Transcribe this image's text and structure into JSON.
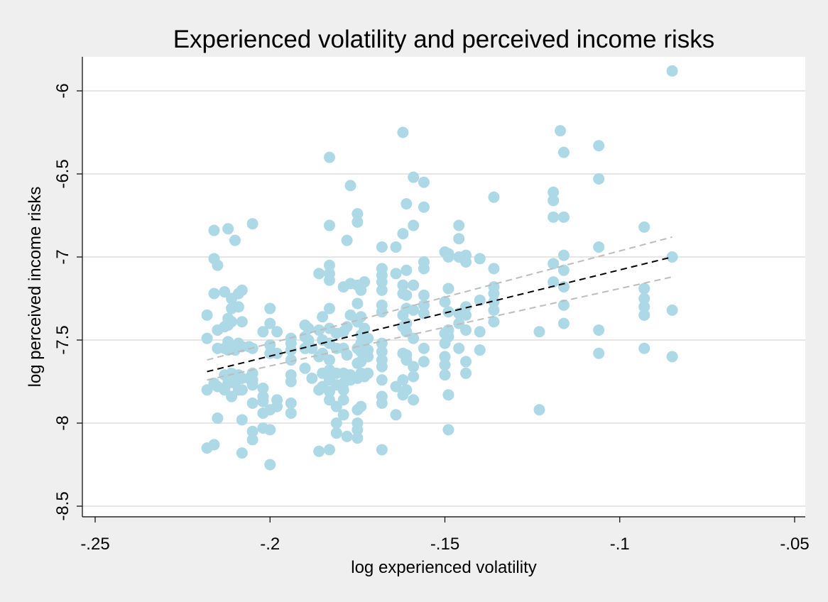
{
  "chart_data": {
    "type": "scatter",
    "title": "Experienced volatility and perceived income risks",
    "xlabel": "log experienced volatility",
    "ylabel": "log perceived income risks",
    "xlim": [
      -0.25,
      -0.05
    ],
    "ylim": [
      -8.5,
      -6.0
    ],
    "xticks": [
      -0.25,
      -0.2,
      -0.15,
      -0.1,
      -0.05
    ],
    "xtick_labels": [
      "-.25",
      "-.2",
      "-.15",
      "-.1",
      "-.05"
    ],
    "yticks": [
      -8.5,
      -8.0,
      -7.5,
      -7.0,
      -6.5,
      -6.0
    ],
    "ytick_labels": [
      "-8.5",
      "-8",
      "-7.5",
      "-7",
      "-6.5",
      "-6"
    ],
    "grid": "horizontal",
    "legend": "none",
    "colors": {
      "points": "#add8e6",
      "fit_line": "#000000",
      "ci_lines": "#bdbdbd",
      "plot_background": "#ffffff",
      "page_background": "#efefef",
      "gridlines": "#e6e6e6"
    },
    "fit_line": {
      "x": [
        -0.218,
        -0.085
      ],
      "y": [
        -7.69,
        -7.0
      ]
    },
    "ci_upper": {
      "x": [
        -0.218,
        -0.085
      ],
      "y": [
        -7.62,
        -6.88
      ]
    },
    "ci_lower": {
      "x": [
        -0.218,
        -0.085
      ],
      "y": [
        -7.74,
        -7.12
      ]
    },
    "points": [
      [
        -0.085,
        -5.88
      ],
      [
        -0.085,
        -7.0
      ],
      [
        -0.085,
        -7.32
      ],
      [
        -0.085,
        -7.6
      ],
      [
        -0.093,
        -6.82
      ],
      [
        -0.093,
        -7.19
      ],
      [
        -0.093,
        -7.25
      ],
      [
        -0.093,
        -7.3
      ],
      [
        -0.093,
        -7.35
      ],
      [
        -0.093,
        -7.55
      ],
      [
        -0.106,
        -6.33
      ],
      [
        -0.106,
        -6.53
      ],
      [
        -0.106,
        -6.94
      ],
      [
        -0.106,
        -7.44
      ],
      [
        -0.106,
        -7.58
      ],
      [
        -0.117,
        -6.24
      ],
      [
        -0.116,
        -6.37
      ],
      [
        -0.116,
        -6.76
      ],
      [
        -0.116,
        -6.99
      ],
      [
        -0.116,
        -7.08
      ],
      [
        -0.116,
        -7.18
      ],
      [
        -0.116,
        -7.29
      ],
      [
        -0.116,
        -7.4
      ],
      [
        -0.119,
        -6.61
      ],
      [
        -0.119,
        -6.66
      ],
      [
        -0.119,
        -6.76
      ],
      [
        -0.119,
        -7.04
      ],
      [
        -0.119,
        -7.15
      ],
      [
        -0.123,
        -7.45
      ],
      [
        -0.123,
        -7.92
      ],
      [
        -0.136,
        -6.64
      ],
      [
        -0.136,
        -7.07
      ],
      [
        -0.136,
        -7.18
      ],
      [
        -0.136,
        -7.22
      ],
      [
        -0.136,
        -7.27
      ],
      [
        -0.136,
        -7.32
      ],
      [
        -0.136,
        -7.39
      ],
      [
        -0.14,
        -7.01
      ],
      [
        -0.14,
        -7.26
      ],
      [
        -0.14,
        -7.45
      ],
      [
        -0.14,
        -7.56
      ],
      [
        -0.144,
        -6.99
      ],
      [
        -0.144,
        -7.03
      ],
      [
        -0.144,
        -7.3
      ],
      [
        -0.144,
        -7.35
      ],
      [
        -0.144,
        -7.44
      ],
      [
        -0.144,
        -7.63
      ],
      [
        -0.144,
        -7.7
      ],
      [
        -0.146,
        -6.81
      ],
      [
        -0.146,
        -6.89
      ],
      [
        -0.146,
        -7.0
      ],
      [
        -0.146,
        -7.34
      ],
      [
        -0.146,
        -7.4
      ],
      [
        -0.146,
        -7.55
      ],
      [
        -0.149,
        -6.98
      ],
      [
        -0.149,
        -7.0
      ],
      [
        -0.149,
        -7.19
      ],
      [
        -0.149,
        -7.33
      ],
      [
        -0.149,
        -7.44
      ],
      [
        -0.149,
        -7.48
      ],
      [
        -0.15,
        -6.97
      ],
      [
        -0.15,
        -7.27
      ],
      [
        -0.15,
        -7.46
      ],
      [
        -0.15,
        -7.52
      ],
      [
        -0.15,
        -7.6
      ],
      [
        -0.15,
        -7.65
      ],
      [
        -0.15,
        -7.71
      ],
      [
        -0.149,
        -7.83
      ],
      [
        -0.149,
        -8.04
      ],
      [
        -0.156,
        -6.55
      ],
      [
        -0.156,
        -6.7
      ],
      [
        -0.156,
        -7.03
      ],
      [
        -0.156,
        -7.07
      ],
      [
        -0.156,
        -7.23
      ],
      [
        -0.156,
        -7.29
      ],
      [
        -0.156,
        -7.34
      ],
      [
        -0.156,
        -7.55
      ],
      [
        -0.156,
        -7.63
      ],
      [
        -0.159,
        -6.52
      ],
      [
        -0.159,
        -6.81
      ],
      [
        -0.159,
        -7.17
      ],
      [
        -0.159,
        -7.32
      ],
      [
        -0.159,
        -7.49
      ],
      [
        -0.159,
        -7.66
      ],
      [
        -0.159,
        -7.72
      ],
      [
        -0.159,
        -7.86
      ],
      [
        -0.161,
        -6.68
      ],
      [
        -0.161,
        -7.08
      ],
      [
        -0.161,
        -7.23
      ],
      [
        -0.161,
        -7.31
      ],
      [
        -0.161,
        -7.4
      ],
      [
        -0.161,
        -7.45
      ],
      [
        -0.161,
        -7.59
      ],
      [
        -0.161,
        -7.62
      ],
      [
        -0.161,
        -7.8
      ],
      [
        -0.162,
        -6.25
      ],
      [
        -0.162,
        -6.86
      ],
      [
        -0.162,
        -7.17
      ],
      [
        -0.162,
        -7.22
      ],
      [
        -0.162,
        -7.35
      ],
      [
        -0.162,
        -7.42
      ],
      [
        -0.162,
        -7.58
      ],
      [
        -0.162,
        -7.74
      ],
      [
        -0.162,
        -7.83
      ],
      [
        -0.164,
        -6.94
      ],
      [
        -0.164,
        -7.1
      ],
      [
        -0.164,
        -7.78
      ],
      [
        -0.164,
        -7.95
      ],
      [
        -0.168,
        -6.94
      ],
      [
        -0.168,
        -7.07
      ],
      [
        -0.168,
        -7.11
      ],
      [
        -0.168,
        -7.15
      ],
      [
        -0.168,
        -7.2
      ],
      [
        -0.168,
        -7.29
      ],
      [
        -0.168,
        -7.33
      ],
      [
        -0.168,
        -7.52
      ],
      [
        -0.168,
        -7.57
      ],
      [
        -0.168,
        -7.62
      ],
      [
        -0.168,
        -7.66
      ],
      [
        -0.168,
        -7.74
      ],
      [
        -0.168,
        -7.84
      ],
      [
        -0.168,
        -7.88
      ],
      [
        -0.168,
        -8.16
      ],
      [
        -0.172,
        -7.49
      ],
      [
        -0.172,
        -7.56
      ],
      [
        -0.172,
        -7.6
      ],
      [
        -0.172,
        -7.7
      ],
      [
        -0.173,
        -7.15
      ],
      [
        -0.173,
        -7.43
      ],
      [
        -0.173,
        -7.54
      ],
      [
        -0.173,
        -7.58
      ],
      [
        -0.173,
        -7.72
      ],
      [
        -0.174,
        -7.2
      ],
      [
        -0.174,
        -7.36
      ],
      [
        -0.174,
        -7.47
      ],
      [
        -0.174,
        -7.52
      ],
      [
        -0.174,
        -7.57
      ],
      [
        -0.174,
        -7.63
      ],
      [
        -0.174,
        -7.7
      ],
      [
        -0.174,
        -7.9
      ],
      [
        -0.175,
        -6.74
      ],
      [
        -0.175,
        -6.79
      ],
      [
        -0.175,
        -7.17
      ],
      [
        -0.175,
        -7.28
      ],
      [
        -0.175,
        -7.39
      ],
      [
        -0.175,
        -7.55
      ],
      [
        -0.175,
        -7.64
      ],
      [
        -0.175,
        -7.73
      ],
      [
        -0.175,
        -7.92
      ],
      [
        -0.175,
        -8.0
      ],
      [
        -0.175,
        -8.04
      ],
      [
        -0.175,
        -8.09
      ],
      [
        -0.177,
        -6.57
      ],
      [
        -0.177,
        -7.16
      ],
      [
        -0.177,
        -7.35
      ],
      [
        -0.177,
        -7.71
      ],
      [
        -0.177,
        -7.74
      ],
      [
        -0.178,
        -6.9
      ],
      [
        -0.178,
        -7.42
      ],
      [
        -0.178,
        -7.59
      ],
      [
        -0.178,
        -7.71
      ],
      [
        -0.178,
        -8.08
      ],
      [
        -0.179,
        -7.18
      ],
      [
        -0.179,
        -7.45
      ],
      [
        -0.179,
        -7.55
      ],
      [
        -0.179,
        -7.7
      ],
      [
        -0.179,
        -7.76
      ],
      [
        -0.179,
        -7.8
      ],
      [
        -0.179,
        -7.86
      ],
      [
        -0.179,
        -7.95
      ],
      [
        -0.181,
        -7.46
      ],
      [
        -0.181,
        -7.55
      ],
      [
        -0.181,
        -7.7
      ],
      [
        -0.181,
        -7.77
      ],
      [
        -0.181,
        -7.9
      ],
      [
        -0.181,
        -8.0
      ],
      [
        -0.181,
        -8.06
      ],
      [
        -0.183,
        -6.4
      ],
      [
        -0.183,
        -6.81
      ],
      [
        -0.183,
        -7.05
      ],
      [
        -0.183,
        -7.1
      ],
      [
        -0.183,
        -7.14
      ],
      [
        -0.183,
        -7.31
      ],
      [
        -0.183,
        -7.43
      ],
      [
        -0.183,
        -7.52
      ],
      [
        -0.183,
        -7.62
      ],
      [
        -0.183,
        -7.68
      ],
      [
        -0.183,
        -7.74
      ],
      [
        -0.183,
        -7.81
      ],
      [
        -0.183,
        -7.86
      ],
      [
        -0.183,
        -8.16
      ],
      [
        -0.185,
        -7.36
      ],
      [
        -0.185,
        -7.5
      ],
      [
        -0.185,
        -7.58
      ],
      [
        -0.185,
        -7.7
      ],
      [
        -0.185,
        -7.78
      ],
      [
        -0.186,
        -7.1
      ],
      [
        -0.186,
        -7.44
      ],
      [
        -0.186,
        -7.6
      ],
      [
        -0.186,
        -7.8
      ],
      [
        -0.186,
        -8.17
      ],
      [
        -0.188,
        -7.55
      ],
      [
        -0.188,
        -7.73
      ],
      [
        -0.189,
        -7.43
      ],
      [
        -0.189,
        -7.5
      ],
      [
        -0.189,
        -7.52
      ],
      [
        -0.19,
        -7.41
      ],
      [
        -0.19,
        -7.48
      ],
      [
        -0.19,
        -7.55
      ],
      [
        -0.19,
        -7.67
      ],
      [
        -0.194,
        -7.49
      ],
      [
        -0.194,
        -7.52
      ],
      [
        -0.194,
        -7.56
      ],
      [
        -0.194,
        -7.62
      ],
      [
        -0.194,
        -7.71
      ],
      [
        -0.194,
        -7.75
      ],
      [
        -0.194,
        -7.88
      ],
      [
        -0.194,
        -7.94
      ],
      [
        -0.198,
        -7.45
      ],
      [
        -0.198,
        -7.58
      ],
      [
        -0.198,
        -7.86
      ],
      [
        -0.198,
        -7.9
      ],
      [
        -0.2,
        -7.31
      ],
      [
        -0.2,
        -7.4
      ],
      [
        -0.2,
        -7.53
      ],
      [
        -0.2,
        -7.58
      ],
      [
        -0.2,
        -7.92
      ],
      [
        -0.2,
        -8.04
      ],
      [
        -0.2,
        -8.25
      ],
      [
        -0.202,
        -7.45
      ],
      [
        -0.202,
        -7.79
      ],
      [
        -0.202,
        -7.84
      ],
      [
        -0.202,
        -7.87
      ],
      [
        -0.202,
        -7.94
      ],
      [
        -0.202,
        -8.03
      ],
      [
        -0.205,
        -6.8
      ],
      [
        -0.205,
        -7.55
      ],
      [
        -0.205,
        -7.7
      ],
      [
        -0.205,
        -7.74
      ],
      [
        -0.205,
        -7.77
      ],
      [
        -0.205,
        -7.88
      ],
      [
        -0.205,
        -8.05
      ],
      [
        -0.205,
        -8.1
      ],
      [
        -0.206,
        -7.54
      ],
      [
        -0.206,
        -7.73
      ],
      [
        -0.208,
        -7.2
      ],
      [
        -0.208,
        -7.39
      ],
      [
        -0.208,
        -7.54
      ],
      [
        -0.208,
        -7.73
      ],
      [
        -0.208,
        -7.8
      ],
      [
        -0.208,
        -7.98
      ],
      [
        -0.208,
        -8.18
      ],
      [
        -0.209,
        -7.22
      ],
      [
        -0.209,
        -7.3
      ],
      [
        -0.209,
        -7.52
      ],
      [
        -0.209,
        -7.71
      ],
      [
        -0.209,
        -7.8
      ],
      [
        -0.21,
        -6.9
      ],
      [
        -0.21,
        -7.56
      ],
      [
        -0.21,
        -7.76
      ],
      [
        -0.211,
        -7.25
      ],
      [
        -0.211,
        -7.31
      ],
      [
        -0.211,
        -7.39
      ],
      [
        -0.211,
        -7.54
      ],
      [
        -0.211,
        -7.7
      ],
      [
        -0.211,
        -7.84
      ],
      [
        -0.212,
        -6.83
      ],
      [
        -0.212,
        -7.37
      ],
      [
        -0.212,
        -7.41
      ],
      [
        -0.212,
        -7.51
      ],
      [
        -0.212,
        -7.56
      ],
      [
        -0.212,
        -7.73
      ],
      [
        -0.212,
        -7.76
      ],
      [
        -0.213,
        -7.21
      ],
      [
        -0.213,
        -7.42
      ],
      [
        -0.213,
        -7.55
      ],
      [
        -0.213,
        -7.71
      ],
      [
        -0.213,
        -7.8
      ],
      [
        -0.215,
        -7.05
      ],
      [
        -0.215,
        -7.44
      ],
      [
        -0.215,
        -7.55
      ],
      [
        -0.215,
        -7.78
      ],
      [
        -0.215,
        -7.97
      ],
      [
        -0.216,
        -6.84
      ],
      [
        -0.216,
        -7.01
      ],
      [
        -0.216,
        -7.22
      ],
      [
        -0.216,
        -7.76
      ],
      [
        -0.216,
        -8.13
      ],
      [
        -0.218,
        -7.35
      ],
      [
        -0.218,
        -7.49
      ],
      [
        -0.218,
        -7.8
      ],
      [
        -0.218,
        -8.15
      ]
    ]
  }
}
